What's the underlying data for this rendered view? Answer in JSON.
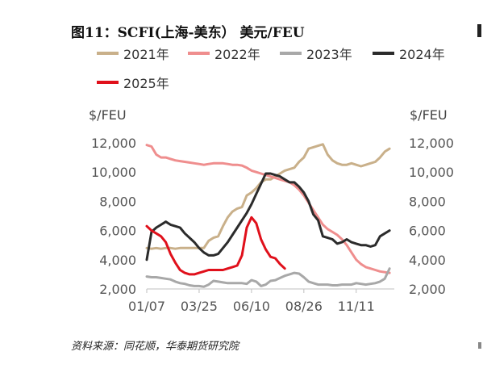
{
  "title": "图11：SCFI(上海-美东） 美元/FEU",
  "source": "资料来源：同花顺，华泰期货研究院",
  "chart_data": {
    "type": "line",
    "y_unit_left": "$/FEU",
    "y_unit_right": "$/FEU",
    "ylim": [
      2000,
      12000
    ],
    "yticks": [
      "2,000",
      "4,000",
      "6,000",
      "8,000",
      "10,000",
      "12,000"
    ],
    "xlim": [
      0,
      52
    ],
    "x_ticks": [
      {
        "label": "01/07",
        "week": 0
      },
      {
        "label": "03/25",
        "week": 11
      },
      {
        "label": "06/10",
        "week": 22
      },
      {
        "label": "08/26",
        "week": 33
      },
      {
        "label": "11/11",
        "week": 44
      }
    ],
    "grid": false,
    "legend_position": "top",
    "series": [
      {
        "name": "2021年",
        "color": "#c9b08a",
        "width": 3,
        "x": [
          0,
          1,
          2,
          3,
          4,
          5,
          6,
          7,
          8,
          9,
          10,
          11,
          12,
          13,
          14,
          15,
          16,
          17,
          18,
          19,
          20,
          21,
          22,
          23,
          24,
          25,
          26,
          27,
          28,
          29,
          30,
          31,
          32,
          33,
          34,
          35,
          36,
          37,
          38,
          39,
          40,
          41,
          42,
          43,
          44,
          45,
          46,
          47,
          48,
          49,
          50,
          51
        ],
        "values": [
          4800,
          4750,
          4800,
          4750,
          4800,
          4800,
          4750,
          4800,
          4800,
          4800,
          4800,
          4800,
          4800,
          5300,
          5500,
          5600,
          6300,
          6900,
          7300,
          7500,
          7600,
          8400,
          8600,
          8900,
          9300,
          9500,
          9500,
          9700,
          9900,
          10100,
          10200,
          10300,
          10700,
          11000,
          11600,
          11700,
          11800,
          11900,
          11200,
          10800,
          10600,
          10500,
          10500,
          10600,
          10500,
          10400,
          10500,
          10600,
          10700,
          11000,
          11400,
          11600
        ]
      },
      {
        "name": "2022年",
        "color": "#ef8e8e",
        "width": 3,
        "x": [
          0,
          1,
          2,
          3,
          4,
          5,
          6,
          7,
          8,
          9,
          10,
          11,
          12,
          13,
          14,
          15,
          16,
          17,
          18,
          19,
          20,
          21,
          22,
          23,
          24,
          25,
          26,
          27,
          28,
          29,
          30,
          31,
          32,
          33,
          34,
          35,
          36,
          37,
          38,
          39,
          40,
          41,
          42,
          43,
          44,
          45,
          46,
          47,
          48,
          49,
          50,
          51
        ],
        "values": [
          11850,
          11750,
          11200,
          11000,
          11000,
          10900,
          10800,
          10750,
          10700,
          10650,
          10600,
          10550,
          10500,
          10550,
          10600,
          10600,
          10600,
          10550,
          10500,
          10500,
          10450,
          10300,
          10100,
          10000,
          9900,
          9800,
          9700,
          9600,
          9500,
          9400,
          9300,
          9100,
          8800,
          8400,
          7900,
          7400,
          6900,
          6400,
          6100,
          5900,
          5700,
          5400,
          5000,
          4500,
          4000,
          3700,
          3500,
          3400,
          3300,
          3200,
          3150,
          3100
        ]
      },
      {
        "name": "2023年",
        "color": "#a8a8a8",
        "width": 3,
        "x": [
          0,
          1,
          2,
          3,
          4,
          5,
          6,
          7,
          8,
          9,
          10,
          11,
          12,
          13,
          14,
          15,
          16,
          17,
          18,
          19,
          20,
          21,
          22,
          23,
          24,
          25,
          26,
          27,
          28,
          29,
          30,
          31,
          32,
          33,
          34,
          35,
          36,
          37,
          38,
          39,
          40,
          41,
          42,
          43,
          44,
          45,
          46,
          47,
          48,
          49,
          50,
          51
        ],
        "values": [
          2850,
          2800,
          2800,
          2750,
          2700,
          2650,
          2500,
          2400,
          2350,
          2250,
          2200,
          2200,
          2150,
          2300,
          2550,
          2500,
          2450,
          2400,
          2400,
          2400,
          2400,
          2350,
          2600,
          2500,
          2200,
          2300,
          2550,
          2600,
          2750,
          2900,
          3000,
          3100,
          3050,
          2800,
          2500,
          2400,
          2300,
          2300,
          2300,
          2250,
          2250,
          2300,
          2300,
          2300,
          2400,
          2350,
          2300,
          2350,
          2400,
          2500,
          2700,
          3400
        ]
      },
      {
        "name": "2024年",
        "color": "#2b2b2b",
        "width": 3,
        "x": [
          0,
          1,
          2,
          3,
          4,
          5,
          6,
          7,
          8,
          9,
          10,
          11,
          12,
          13,
          14,
          15,
          16,
          17,
          18,
          19,
          20,
          21,
          22,
          23,
          24,
          25,
          26,
          27,
          28,
          29,
          30,
          31,
          32,
          33,
          34,
          35,
          36,
          37,
          38,
          39,
          40,
          41,
          42,
          43,
          44,
          45,
          46,
          47,
          48,
          49,
          50,
          51
        ],
        "values": [
          4000,
          5900,
          6200,
          6400,
          6600,
          6400,
          6300,
          6200,
          5800,
          5500,
          5200,
          4800,
          4500,
          4300,
          4300,
          4400,
          4800,
          5200,
          5700,
          6200,
          6700,
          7200,
          7800,
          8500,
          9200,
          9900,
          9900,
          9800,
          9700,
          9500,
          9300,
          9300,
          9000,
          8600,
          8000,
          7100,
          6700,
          5600,
          5500,
          5400,
          5100,
          5200,
          5400,
          5200,
          5100,
          5000,
          5000,
          4900,
          5000,
          5600,
          5800,
          6000
        ]
      },
      {
        "name": "2025年",
        "color": "#e0101b",
        "width": 3,
        "x": [
          0,
          1,
          2,
          3,
          4,
          5,
          6,
          7,
          8,
          9,
          10,
          11,
          12,
          13,
          14,
          15,
          16,
          17,
          18,
          19,
          20,
          21,
          22,
          23,
          24,
          25,
          26,
          27,
          28,
          29
        ],
        "values": [
          6300,
          6000,
          5800,
          5600,
          5200,
          4400,
          3800,
          3300,
          3100,
          3000,
          3000,
          3100,
          3200,
          3300,
          3300,
          3300,
          3300,
          3400,
          3500,
          3600,
          4300,
          6200,
          6900,
          6500,
          5400,
          4700,
          4200,
          4100,
          3700,
          3400
        ]
      }
    ]
  }
}
